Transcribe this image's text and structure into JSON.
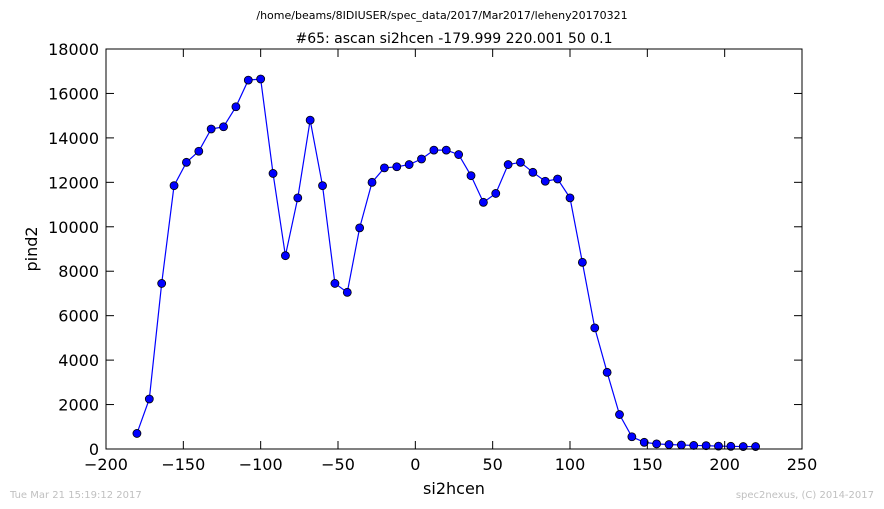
{
  "suptitle": "/home/beams/8IDIUSER/spec_data/2017/Mar2017/leheny20170321",
  "footer_left": "Tue Mar 21 15:19:12 2017",
  "footer_right": "spec2nexus, (C) 2014-2017",
  "colors": {
    "series": "#0000ff",
    "marker": "#0000ff",
    "axes": "#000000",
    "footer": "#c0c0c0"
  },
  "chart_data": {
    "type": "line",
    "title": "#65: ascan  si2hcen -179.999 220.001  50 0.1",
    "xlabel": "si2hcen",
    "ylabel": "pind2",
    "xlim": [
      -200,
      250
    ],
    "ylim": [
      0,
      18000
    ],
    "xticks": [
      -200,
      -150,
      -100,
      -50,
      0,
      50,
      100,
      150,
      200,
      250
    ],
    "yticks": [
      0,
      2000,
      4000,
      6000,
      8000,
      10000,
      12000,
      14000,
      16000,
      18000
    ],
    "grid": false,
    "legend": "none",
    "series": [
      {
        "x": [
          -180,
          -172,
          -164,
          -156,
          -148,
          -140,
          -132,
          -124,
          -116,
          -108,
          -100,
          -92,
          -84,
          -76,
          -68,
          -60,
          -52,
          -44,
          -36,
          -28,
          -20,
          -12,
          -4,
          4,
          12,
          20,
          28,
          36,
          44,
          52,
          60,
          68,
          76,
          84,
          92,
          100,
          108,
          116,
          124,
          132,
          140,
          148,
          156,
          164,
          172,
          180,
          188,
          196,
          204,
          212,
          220
        ],
        "y": [
          700,
          2250,
          7450,
          11850,
          12900,
          13400,
          14400,
          14500,
          15400,
          16600,
          16650,
          12400,
          8700,
          11300,
          14800,
          11850,
          7450,
          7050,
          9950,
          12000,
          12650,
          12700,
          12800,
          13050,
          13450,
          13450,
          13250,
          12300,
          11100,
          11500,
          12800,
          12900,
          12450,
          12050,
          12150,
          11300,
          8400,
          5450,
          3450,
          1550,
          550,
          300,
          230,
          200,
          180,
          160,
          150,
          130,
          120,
          110,
          110
        ]
      }
    ]
  }
}
